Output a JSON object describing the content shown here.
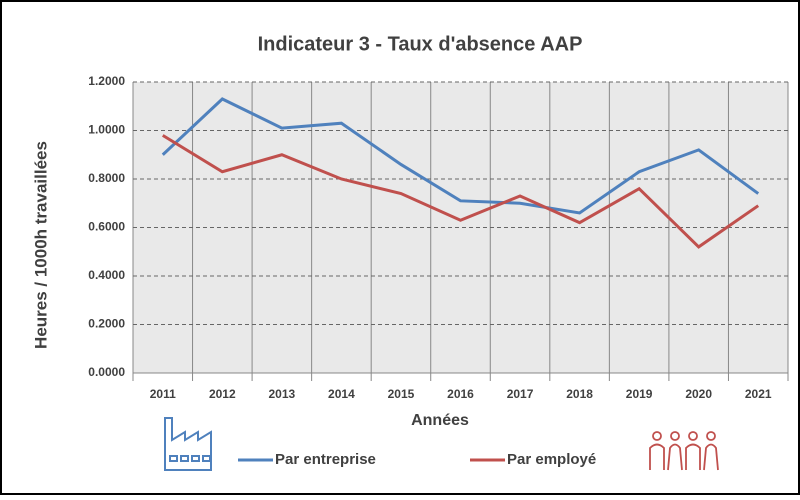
{
  "chart_data": {
    "type": "line",
    "title": "Indicateur 3 - Taux d'absence AAP",
    "x_label": "Années",
    "y_label": "Heures / 1000h travaillées",
    "categories": [
      "2011",
      "2012",
      "2013",
      "2014",
      "2015",
      "2016",
      "2017",
      "2018",
      "2019",
      "2020",
      "2021"
    ],
    "series": [
      {
        "name": "Par entreprise",
        "color": "#4f81bd",
        "values": [
          0.9,
          1.13,
          1.01,
          1.03,
          0.86,
          0.71,
          0.7,
          0.66,
          0.83,
          0.92,
          0.74
        ]
      },
      {
        "name": "Par employé",
        "color": "#c0504d",
        "values": [
          0.98,
          0.83,
          0.9,
          0.8,
          0.74,
          0.63,
          0.73,
          0.62,
          0.76,
          0.52,
          0.69
        ]
      }
    ],
    "ylim": [
      0,
      1.2
    ],
    "yticks": [
      {
        "value": 0,
        "label": "0.0000"
      },
      {
        "value": 0.2,
        "label": "0.2000"
      },
      {
        "value": 0.4,
        "label": "0.4000"
      },
      {
        "value": 0.6,
        "label": "0.6000"
      },
      {
        "value": 0.8,
        "label": "0.8000"
      },
      {
        "value": 1.0,
        "label": "1.0000"
      },
      {
        "value": 1.2,
        "label": "1.2000"
      }
    ],
    "grid": true,
    "legend": "bottom"
  }
}
